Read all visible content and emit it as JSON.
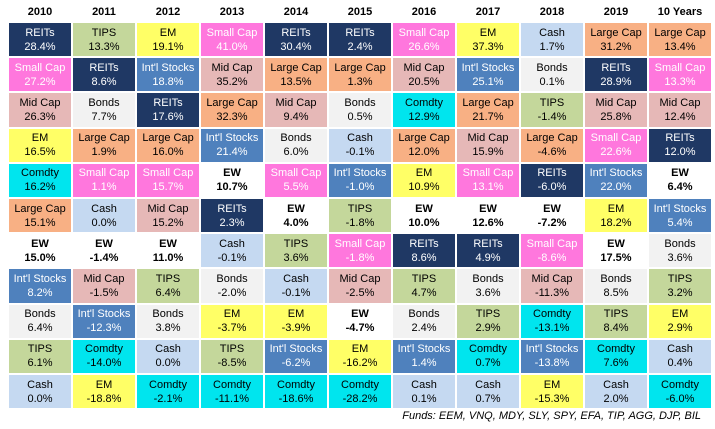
{
  "table": {
    "headers": [
      "2010",
      "2011",
      "2012",
      "2013",
      "2014",
      "2015",
      "2016",
      "2017",
      "2018",
      "2019",
      "10 Years"
    ],
    "columns": [
      [
        [
          "REITs",
          "28.4%"
        ],
        [
          "Small Cap",
          "27.2%"
        ],
        [
          "Mid Cap",
          "26.3%"
        ],
        [
          "EM",
          "16.5%"
        ],
        [
          "Comdty",
          "16.2%"
        ],
        [
          "Large Cap",
          "15.1%"
        ],
        [
          "EW",
          "15.0%"
        ],
        [
          "Int'l Stocks",
          "8.2%"
        ],
        [
          "Bonds",
          "6.4%"
        ],
        [
          "TIPS",
          "6.1%"
        ],
        [
          "Cash",
          "0.0%"
        ]
      ],
      [
        [
          "TIPS",
          "13.3%"
        ],
        [
          "REITs",
          "8.6%"
        ],
        [
          "Bonds",
          "7.7%"
        ],
        [
          "Large Cap",
          "1.9%"
        ],
        [
          "Small Cap",
          "1.1%"
        ],
        [
          "Cash",
          "0.0%"
        ],
        [
          "EW",
          "-1.4%"
        ],
        [
          "Mid Cap",
          "-1.5%"
        ],
        [
          "Int'l Stocks",
          "-12.3%"
        ],
        [
          "Comdty",
          "-14.0%"
        ],
        [
          "EM",
          "-18.8%"
        ]
      ],
      [
        [
          "EM",
          "19.1%"
        ],
        [
          "Int'l Stocks",
          "18.8%"
        ],
        [
          "REITs",
          "17.6%"
        ],
        [
          "Large Cap",
          "16.0%"
        ],
        [
          "Small Cap",
          "15.7%"
        ],
        [
          "Mid Cap",
          "15.2%"
        ],
        [
          "EW",
          "11.0%"
        ],
        [
          "TIPS",
          "6.4%"
        ],
        [
          "Bonds",
          "3.8%"
        ],
        [
          "Cash",
          "0.0%"
        ],
        [
          "Comdty",
          "-2.1%"
        ]
      ],
      [
        [
          "Small Cap",
          "41.0%"
        ],
        [
          "Mid Cap",
          "35.2%"
        ],
        [
          "Large Cap",
          "32.3%"
        ],
        [
          "Int'l Stocks",
          "21.4%"
        ],
        [
          "EW",
          "10.7%"
        ],
        [
          "REITs",
          "2.3%"
        ],
        [
          "Cash",
          "-0.1%"
        ],
        [
          "Bonds",
          "-2.0%"
        ],
        [
          "EM",
          "-3.7%"
        ],
        [
          "TIPS",
          "-8.5%"
        ],
        [
          "Comdty",
          "-11.1%"
        ]
      ],
      [
        [
          "REITs",
          "30.4%"
        ],
        [
          "Large Cap",
          "13.5%"
        ],
        [
          "Mid Cap",
          "9.4%"
        ],
        [
          "Bonds",
          "6.0%"
        ],
        [
          "Small Cap",
          "5.5%"
        ],
        [
          "EW",
          "4.0%"
        ],
        [
          "TIPS",
          "3.6%"
        ],
        [
          "Cash",
          "-0.1%"
        ],
        [
          "EM",
          "-3.9%"
        ],
        [
          "Int'l Stocks",
          "-6.2%"
        ],
        [
          "Comdty",
          "-18.6%"
        ]
      ],
      [
        [
          "REITs",
          "2.4%"
        ],
        [
          "Large Cap",
          "1.3%"
        ],
        [
          "Bonds",
          "0.5%"
        ],
        [
          "Cash",
          "-0.1%"
        ],
        [
          "Int'l Stocks",
          "-1.0%"
        ],
        [
          "TIPS",
          "-1.8%"
        ],
        [
          "Small Cap",
          "-1.8%"
        ],
        [
          "Mid Cap",
          "-2.5%"
        ],
        [
          "EW",
          "-4.7%"
        ],
        [
          "EM",
          "-16.2%"
        ],
        [
          "Comdty",
          "-28.2%"
        ]
      ],
      [
        [
          "Small Cap",
          "26.6%"
        ],
        [
          "Mid Cap",
          "20.5%"
        ],
        [
          "Comdty",
          "12.9%"
        ],
        [
          "Large Cap",
          "12.0%"
        ],
        [
          "EM",
          "10.9%"
        ],
        [
          "EW",
          "10.0%"
        ],
        [
          "REITs",
          "8.6%"
        ],
        [
          "TIPS",
          "4.7%"
        ],
        [
          "Bonds",
          "2.4%"
        ],
        [
          "Int'l Stocks",
          "1.4%"
        ],
        [
          "Cash",
          "0.1%"
        ]
      ],
      [
        [
          "EM",
          "37.3%"
        ],
        [
          "Int'l Stocks",
          "25.1%"
        ],
        [
          "Large Cap",
          "21.7%"
        ],
        [
          "Mid Cap",
          "15.9%"
        ],
        [
          "Small Cap",
          "13.1%"
        ],
        [
          "EW",
          "12.6%"
        ],
        [
          "REITs",
          "4.9%"
        ],
        [
          "Bonds",
          "3.6%"
        ],
        [
          "TIPS",
          "2.9%"
        ],
        [
          "Comdty",
          "0.7%"
        ],
        [
          "Cash",
          "0.7%"
        ]
      ],
      [
        [
          "Cash",
          "1.7%"
        ],
        [
          "Bonds",
          "0.1%"
        ],
        [
          "TIPS",
          "-1.4%"
        ],
        [
          "Large Cap",
          "-4.6%"
        ],
        [
          "REITs",
          "-6.0%"
        ],
        [
          "EW",
          "-7.2%"
        ],
        [
          "Small Cap",
          "-8.6%"
        ],
        [
          "Mid Cap",
          "-11.3%"
        ],
        [
          "Comdty",
          "-13.1%"
        ],
        [
          "Int'l Stocks",
          "-13.8%"
        ],
        [
          "EM",
          "-15.3%"
        ]
      ],
      [
        [
          "Large Cap",
          "31.2%"
        ],
        [
          "REITs",
          "28.9%"
        ],
        [
          "Mid Cap",
          "25.8%"
        ],
        [
          "Small Cap",
          "22.6%"
        ],
        [
          "Int'l Stocks",
          "22.0%"
        ],
        [
          "EM",
          "18.2%"
        ],
        [
          "EW",
          "17.5%"
        ],
        [
          "Bonds",
          "8.5%"
        ],
        [
          "TIPS",
          "8.4%"
        ],
        [
          "Comdty",
          "7.6%"
        ],
        [
          "Cash",
          "2.0%"
        ]
      ],
      [
        [
          "Large Cap",
          "13.4%"
        ],
        [
          "Small Cap",
          "13.3%"
        ],
        [
          "Mid Cap",
          "12.4%"
        ],
        [
          "REITs",
          "12.0%"
        ],
        [
          "EW",
          "6.4%"
        ],
        [
          "Int'l Stocks",
          "5.4%"
        ],
        [
          "Bonds",
          "3.6%"
        ],
        [
          "TIPS",
          "3.2%"
        ],
        [
          "EM",
          "2.9%"
        ],
        [
          "Cash",
          "0.4%"
        ],
        [
          "Comdty",
          "-6.0%"
        ]
      ]
    ],
    "colors": {
      "REITs": {
        "fill": "#1f3864",
        "text": "#ffffff"
      },
      "TIPS": {
        "fill": "#c4d79b",
        "text": "#000000"
      },
      "EM": {
        "fill": "#ffff66",
        "text": "#000000"
      },
      "Small Cap": {
        "fill": "#ff77dd",
        "text": "#ffffff"
      },
      "Large Cap": {
        "fill": "#f8b084",
        "text": "#000000"
      },
      "Mid Cap": {
        "fill": "#e6b8b7",
        "text": "#000000"
      },
      "Int'l Stocks": {
        "fill": "#4f81bd",
        "text": "#ffffff"
      },
      "Bonds": {
        "fill": "#f2f2f2",
        "text": "#000000"
      },
      "Cash": {
        "fill": "#c5d9f1",
        "text": "#000000"
      },
      "Comdty": {
        "fill": "#00e5ee",
        "text": "#000000"
      },
      "EW": {
        "fill": "#ffffff",
        "text": "#000000",
        "bold": true
      }
    },
    "footer": "Funds: EEM, VNQ, MDY, SLY, SPY, EFA, TIP, AGG, DJP, BIL"
  }
}
